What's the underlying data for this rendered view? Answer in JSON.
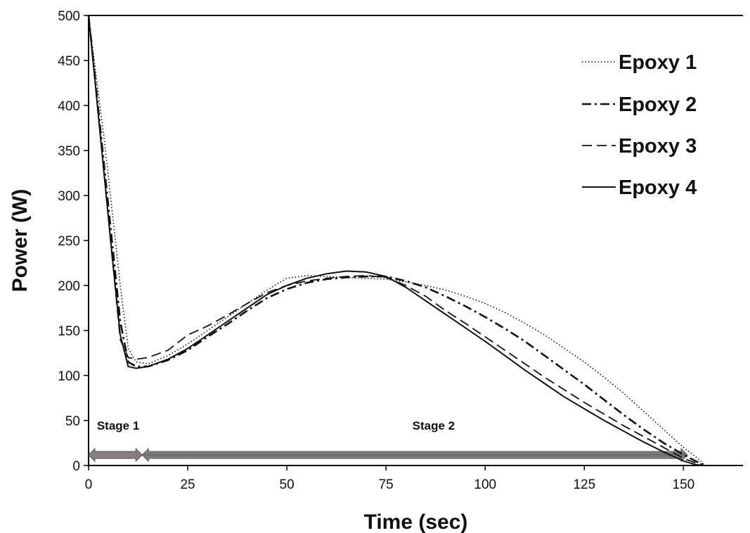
{
  "chart_data": {
    "type": "line",
    "title": "",
    "xlabel": "Time (sec)",
    "ylabel": "Power (W)",
    "xlim": [
      0,
      165
    ],
    "ylim": [
      0,
      500
    ],
    "xticks": [
      0,
      25,
      50,
      75,
      100,
      125,
      150
    ],
    "yticks": [
      0,
      50,
      100,
      150,
      200,
      250,
      300,
      350,
      400,
      450,
      500
    ],
    "grid": false,
    "legend_position": "top-right",
    "series": [
      {
        "name": "Epoxy 1",
        "style": "dotted",
        "x": [
          0,
          2,
          4,
          6,
          8,
          10,
          12,
          15,
          20,
          25,
          30,
          35,
          40,
          45,
          50,
          55,
          60,
          65,
          70,
          75,
          80,
          85,
          90,
          95,
          100,
          105,
          110,
          115,
          120,
          125,
          130,
          135,
          140,
          145,
          150,
          153,
          155
        ],
        "y": [
          500,
          430,
          360,
          280,
          200,
          130,
          115,
          113,
          122,
          135,
          150,
          165,
          180,
          195,
          208,
          211,
          210,
          209,
          208,
          207,
          204,
          200,
          195,
          188,
          180,
          170,
          158,
          145,
          130,
          115,
          98,
          80,
          60,
          40,
          20,
          10,
          2
        ]
      },
      {
        "name": "Epoxy 2",
        "style": "dash-dot",
        "x": [
          0,
          2,
          4,
          6,
          8,
          10,
          12,
          15,
          20,
          25,
          30,
          35,
          40,
          45,
          50,
          55,
          60,
          65,
          70,
          75,
          80,
          85,
          90,
          95,
          100,
          105,
          110,
          115,
          120,
          125,
          130,
          135,
          140,
          145,
          150,
          153,
          155
        ],
        "y": [
          500,
          415,
          330,
          245,
          160,
          115,
          110,
          110,
          117,
          128,
          143,
          157,
          172,
          186,
          196,
          203,
          207,
          209,
          210,
          210,
          205,
          198,
          188,
          177,
          165,
          152,
          138,
          122,
          106,
          90,
          73,
          56,
          40,
          25,
          12,
          5,
          1
        ]
      },
      {
        "name": "Epoxy 3",
        "style": "dashed",
        "x": [
          0,
          2,
          4,
          6,
          8,
          10,
          12,
          15,
          20,
          25,
          30,
          35,
          40,
          45,
          50,
          55,
          60,
          65,
          70,
          75,
          80,
          85,
          90,
          95,
          100,
          105,
          110,
          115,
          120,
          125,
          130,
          135,
          140,
          145,
          150,
          153,
          155
        ],
        "y": [
          500,
          410,
          320,
          230,
          140,
          120,
          118,
          120,
          128,
          145,
          155,
          167,
          180,
          192,
          200,
          205,
          208,
          210,
          211,
          209,
          200,
          188,
          172,
          158,
          143,
          128,
          113,
          98,
          84,
          70,
          57,
          44,
          32,
          20,
          8,
          3,
          1
        ]
      },
      {
        "name": "Epoxy 4",
        "style": "solid",
        "x": [
          0,
          2,
          4,
          6,
          8,
          10,
          12,
          15,
          20,
          25,
          30,
          35,
          40,
          45,
          50,
          55,
          60,
          65,
          70,
          75,
          80,
          85,
          90,
          95,
          100,
          105,
          110,
          115,
          120,
          125,
          130,
          135,
          140,
          145,
          150,
          153,
          155
        ],
        "y": [
          500,
          410,
          320,
          230,
          145,
          110,
          108,
          110,
          118,
          130,
          145,
          160,
          175,
          190,
          200,
          208,
          213,
          216,
          215,
          210,
          198,
          183,
          168,
          153,
          138,
          122,
          106,
          91,
          76,
          63,
          50,
          38,
          26,
          15,
          5,
          1,
          0
        ]
      }
    ],
    "annotations": [
      {
        "label": "Stage 1",
        "x_start": 0,
        "x_end": 13.5
      },
      {
        "label": "Stage 2",
        "x_start": 13.5,
        "x_end": 151
      }
    ]
  }
}
